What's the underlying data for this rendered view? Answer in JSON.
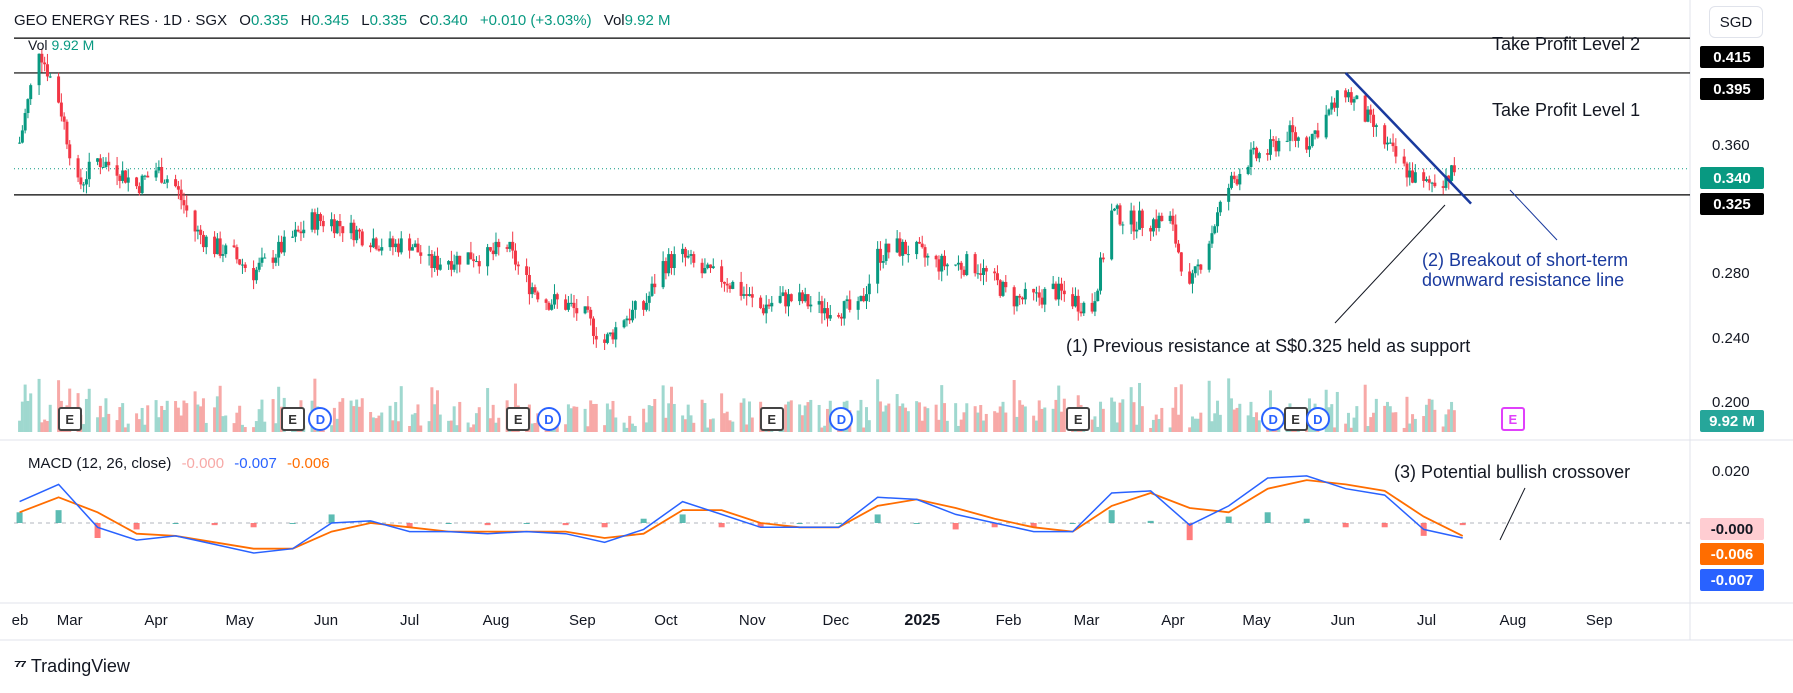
{
  "header": {
    "symbol": "GEO ENERGY RES · 1D · SGX",
    "o_label": "O",
    "o_value": "0.335",
    "h_label": "H",
    "h_value": "0.345",
    "l_label": "L",
    "l_value": "0.335",
    "c_label": "C",
    "c_value": "0.340",
    "change": "+0.010 (+3.03%)",
    "vol_label": "Vol",
    "vol_value": "9.92 M"
  },
  "volume_legend": {
    "label": "Vol",
    "value": "9.92 M"
  },
  "currency": "SGD",
  "macd_legend": {
    "title": "MACD (12, 26, close)",
    "hist": "-0.000",
    "macd": "-0.007",
    "signal": "-0.006"
  },
  "annotations": {
    "tp2": "Take Profit Level 2",
    "tp1": "Take Profit Level 1",
    "a1": "(1) Previous resistance at S$0.325 held as support",
    "a2_line1": "(2) Breakout of short-term",
    "a2_line2": "downward resistance line",
    "a3": "(3) Potential bullish crossover"
  },
  "price_tags": {
    "tp2": "0.415",
    "tp1": "0.395",
    "current": "0.340",
    "support": "0.325",
    "volume": "9.92 M",
    "hist": "-0.000",
    "signal": "-0.006",
    "macd": "-0.007"
  },
  "axis": {
    "price_ticks": [
      "0.360",
      "0.280",
      "0.240",
      "0.200"
    ],
    "macd_ticks": [
      "0.020"
    ],
    "months": [
      "eb",
      "Mar",
      "Apr",
      "May",
      "Jun",
      "Jul",
      "Aug",
      "Sep",
      "Oct",
      "Nov",
      "Dec",
      "2025",
      "Feb",
      "Mar",
      "Apr",
      "May",
      "Jun",
      "Jul",
      "Aug",
      "Sep"
    ]
  },
  "events": [
    {
      "type": "E"
    },
    {
      "type": "E"
    },
    {
      "type": "D"
    },
    {
      "type": "E"
    },
    {
      "type": "D"
    },
    {
      "type": "E"
    },
    {
      "type": "D"
    },
    {
      "type": "E"
    },
    {
      "type": "D"
    },
    {
      "type": "E"
    },
    {
      "type": "D"
    },
    {
      "type": "E2"
    }
  ],
  "events_text": {
    "E": "E",
    "D": "D",
    "E2": "E"
  },
  "logo": "TradingView",
  "colors": {
    "up": "#089981",
    "down": "#f23645",
    "macd": "#2962ff",
    "signal": "#ff6d00",
    "hist_up": "#26a69a",
    "hist_down": "#ff5252",
    "trend": "#1a3a9e"
  },
  "chart_data": {
    "type": "candlestick",
    "title": "GEO ENERGY RES · 1D · SGX",
    "ylim": [
      0.19,
      0.43
    ],
    "horizontal_levels": [
      0.415,
      0.395,
      0.325
    ],
    "close_series": [
      {
        "x": "2024-02-12",
        "y": 0.355
      },
      {
        "x": "2024-02-19",
        "y": 0.41
      },
      {
        "x": "2024-02-26",
        "y": 0.38
      },
      {
        "x": "2024-03-04",
        "y": 0.33
      },
      {
        "x": "2024-03-11",
        "y": 0.345
      },
      {
        "x": "2024-03-18",
        "y": 0.34
      },
      {
        "x": "2024-03-25",
        "y": 0.33
      },
      {
        "x": "2024-04-01",
        "y": 0.34
      },
      {
        "x": "2024-04-08",
        "y": 0.33
      },
      {
        "x": "2024-04-15",
        "y": 0.305
      },
      {
        "x": "2024-04-22",
        "y": 0.295
      },
      {
        "x": "2024-04-29",
        "y": 0.29
      },
      {
        "x": "2024-05-06",
        "y": 0.28
      },
      {
        "x": "2024-05-13",
        "y": 0.29
      },
      {
        "x": "2024-05-20",
        "y": 0.3
      },
      {
        "x": "2024-05-27",
        "y": 0.31
      },
      {
        "x": "2024-06-03",
        "y": 0.31
      },
      {
        "x": "2024-06-10",
        "y": 0.305
      },
      {
        "x": "2024-06-17",
        "y": 0.3
      },
      {
        "x": "2024-06-24",
        "y": 0.295
      },
      {
        "x": "2024-07-01",
        "y": 0.298
      },
      {
        "x": "2024-07-08",
        "y": 0.285
      },
      {
        "x": "2024-07-15",
        "y": 0.288
      },
      {
        "x": "2024-07-22",
        "y": 0.29
      },
      {
        "x": "2024-07-29",
        "y": 0.29
      },
      {
        "x": "2024-08-05",
        "y": 0.295
      },
      {
        "x": "2024-08-12",
        "y": 0.275
      },
      {
        "x": "2024-08-19",
        "y": 0.265
      },
      {
        "x": "2024-08-26",
        "y": 0.262
      },
      {
        "x": "2024-09-02",
        "y": 0.255
      },
      {
        "x": "2024-09-09",
        "y": 0.24
      },
      {
        "x": "2024-09-16",
        "y": 0.255
      },
      {
        "x": "2024-09-23",
        "y": 0.26
      },
      {
        "x": "2024-09-30",
        "y": 0.285
      },
      {
        "x": "2024-10-07",
        "y": 0.29
      },
      {
        "x": "2024-10-14",
        "y": 0.28
      },
      {
        "x": "2024-10-21",
        "y": 0.278
      },
      {
        "x": "2024-10-28",
        "y": 0.27
      },
      {
        "x": "2024-11-04",
        "y": 0.26
      },
      {
        "x": "2024-11-11",
        "y": 0.265
      },
      {
        "x": "2024-11-18",
        "y": 0.265
      },
      {
        "x": "2024-11-25",
        "y": 0.26
      },
      {
        "x": "2024-12-02",
        "y": 0.26
      },
      {
        "x": "2024-12-09",
        "y": 0.258
      },
      {
        "x": "2024-12-16",
        "y": 0.29
      },
      {
        "x": "2024-12-23",
        "y": 0.295
      },
      {
        "x": "2024-12-30",
        "y": 0.292
      },
      {
        "x": "2025-01-06",
        "y": 0.285
      },
      {
        "x": "2025-01-13",
        "y": 0.285
      },
      {
        "x": "2025-01-20",
        "y": 0.285
      },
      {
        "x": "2025-01-27",
        "y": 0.275
      },
      {
        "x": "2025-02-03",
        "y": 0.265
      },
      {
        "x": "2025-02-10",
        "y": 0.265
      },
      {
        "x": "2025-02-17",
        "y": 0.27
      },
      {
        "x": "2025-02-24",
        "y": 0.265
      },
      {
        "x": "2025-03-03",
        "y": 0.26
      },
      {
        "x": "2025-03-10",
        "y": 0.315
      },
      {
        "x": "2025-03-17",
        "y": 0.31
      },
      {
        "x": "2025-03-24",
        "y": 0.31
      },
      {
        "x": "2025-03-31",
        "y": 0.31
      },
      {
        "x": "2025-04-07",
        "y": 0.27
      },
      {
        "x": "2025-04-14",
        "y": 0.3
      },
      {
        "x": "2025-04-21",
        "y": 0.33
      },
      {
        "x": "2025-04-28",
        "y": 0.345
      },
      {
        "x": "2025-05-05",
        "y": 0.35
      },
      {
        "x": "2025-05-12",
        "y": 0.36
      },
      {
        "x": "2025-05-19",
        "y": 0.355
      },
      {
        "x": "2025-05-26",
        "y": 0.37
      },
      {
        "x": "2025-06-02",
        "y": 0.385
      },
      {
        "x": "2025-06-09",
        "y": 0.37
      },
      {
        "x": "2025-06-16",
        "y": 0.355
      },
      {
        "x": "2025-06-23",
        "y": 0.34
      },
      {
        "x": "2025-06-30",
        "y": 0.33
      },
      {
        "x": "2025-07-07",
        "y": 0.335
      },
      {
        "x": "2025-07-14",
        "y": 0.34
      }
    ],
    "macd": {
      "ylim": [
        -0.035,
        0.035
      ],
      "x": [
        "2024-02-12",
        "2024-02-26",
        "2024-03-11",
        "2024-03-25",
        "2024-04-08",
        "2024-04-22",
        "2024-05-06",
        "2024-05-20",
        "2024-06-03",
        "2024-06-17",
        "2024-07-01",
        "2024-07-15",
        "2024-07-29",
        "2024-08-12",
        "2024-08-26",
        "2024-09-09",
        "2024-09-23",
        "2024-10-07",
        "2024-10-21",
        "2024-11-04",
        "2024-11-18",
        "2024-12-02",
        "2024-12-16",
        "2024-12-30",
        "2025-01-13",
        "2025-01-27",
        "2025-02-10",
        "2025-02-24",
        "2025-03-10",
        "2025-03-24",
        "2025-04-07",
        "2025-04-21",
        "2025-05-05",
        "2025-05-19",
        "2025-06-02",
        "2025-06-16",
        "2025-06-30",
        "2025-07-14"
      ],
      "macd_line": [
        0.01,
        0.018,
        -0.002,
        -0.008,
        -0.006,
        -0.01,
        -0.014,
        -0.012,
        0.0,
        0.001,
        -0.004,
        -0.004,
        -0.005,
        -0.004,
        -0.005,
        -0.009,
        -0.003,
        0.01,
        0.004,
        -0.002,
        -0.002,
        -0.002,
        0.012,
        0.011,
        0.004,
        0.0,
        -0.004,
        -0.004,
        0.014,
        0.015,
        -0.001,
        0.008,
        0.021,
        0.022,
        0.016,
        0.013,
        -0.003,
        -0.007
      ],
      "signal_line": [
        0.005,
        0.012,
        0.005,
        -0.005,
        -0.006,
        -0.009,
        -0.012,
        -0.012,
        -0.004,
        0.0,
        -0.002,
        -0.004,
        -0.004,
        -0.004,
        -0.004,
        -0.007,
        -0.005,
        0.006,
        0.006,
        0.0,
        -0.002,
        -0.002,
        0.008,
        0.011,
        0.007,
        0.002,
        -0.002,
        -0.004,
        0.008,
        0.014,
        0.007,
        0.005,
        0.016,
        0.02,
        0.018,
        0.015,
        0.003,
        -0.006
      ]
    }
  }
}
